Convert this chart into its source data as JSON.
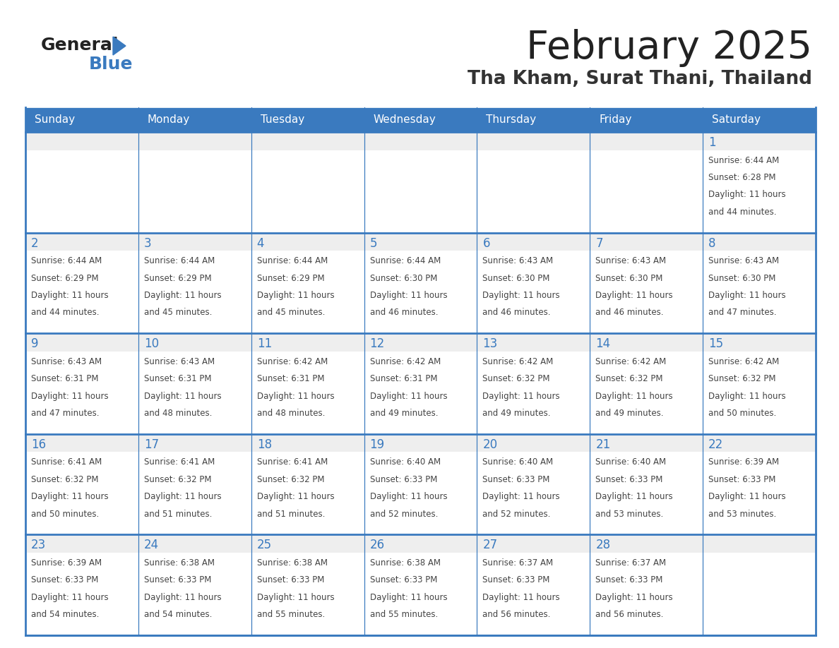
{
  "title": "February 2025",
  "subtitle": "Tha Kham, Surat Thani, Thailand",
  "header_bg": "#3a7abf",
  "header_text": "#ffffff",
  "cell_bg_white": "#ffffff",
  "cell_bg_gray": "#eeeeee",
  "border_color_thick": "#3a7abf",
  "border_color_light": "#cccccc",
  "day_names": [
    "Sunday",
    "Monday",
    "Tuesday",
    "Wednesday",
    "Thursday",
    "Friday",
    "Saturday"
  ],
  "title_color": "#222222",
  "subtitle_color": "#333333",
  "day_num_color": "#3a7abf",
  "cell_text_color": "#444444",
  "logo_general_color": "#222222",
  "logo_blue_color": "#3a7abf",
  "logo_triangle_color": "#3a7abf",
  "calendar": [
    [
      null,
      null,
      null,
      null,
      null,
      null,
      {
        "day": 1,
        "sunrise": "6:44 AM",
        "sunset": "6:28 PM",
        "daylight_l1": "Daylight: 11 hours",
        "daylight_l2": "and 44 minutes."
      }
    ],
    [
      {
        "day": 2,
        "sunrise": "6:44 AM",
        "sunset": "6:29 PM",
        "daylight_l1": "Daylight: 11 hours",
        "daylight_l2": "and 44 minutes."
      },
      {
        "day": 3,
        "sunrise": "6:44 AM",
        "sunset": "6:29 PM",
        "daylight_l1": "Daylight: 11 hours",
        "daylight_l2": "and 45 minutes."
      },
      {
        "day": 4,
        "sunrise": "6:44 AM",
        "sunset": "6:29 PM",
        "daylight_l1": "Daylight: 11 hours",
        "daylight_l2": "and 45 minutes."
      },
      {
        "day": 5,
        "sunrise": "6:44 AM",
        "sunset": "6:30 PM",
        "daylight_l1": "Daylight: 11 hours",
        "daylight_l2": "and 46 minutes."
      },
      {
        "day": 6,
        "sunrise": "6:43 AM",
        "sunset": "6:30 PM",
        "daylight_l1": "Daylight: 11 hours",
        "daylight_l2": "and 46 minutes."
      },
      {
        "day": 7,
        "sunrise": "6:43 AM",
        "sunset": "6:30 PM",
        "daylight_l1": "Daylight: 11 hours",
        "daylight_l2": "and 46 minutes."
      },
      {
        "day": 8,
        "sunrise": "6:43 AM",
        "sunset": "6:30 PM",
        "daylight_l1": "Daylight: 11 hours",
        "daylight_l2": "and 47 minutes."
      }
    ],
    [
      {
        "day": 9,
        "sunrise": "6:43 AM",
        "sunset": "6:31 PM",
        "daylight_l1": "Daylight: 11 hours",
        "daylight_l2": "and 47 minutes."
      },
      {
        "day": 10,
        "sunrise": "6:43 AM",
        "sunset": "6:31 PM",
        "daylight_l1": "Daylight: 11 hours",
        "daylight_l2": "and 48 minutes."
      },
      {
        "day": 11,
        "sunrise": "6:42 AM",
        "sunset": "6:31 PM",
        "daylight_l1": "Daylight: 11 hours",
        "daylight_l2": "and 48 minutes."
      },
      {
        "day": 12,
        "sunrise": "6:42 AM",
        "sunset": "6:31 PM",
        "daylight_l1": "Daylight: 11 hours",
        "daylight_l2": "and 49 minutes."
      },
      {
        "day": 13,
        "sunrise": "6:42 AM",
        "sunset": "6:32 PM",
        "daylight_l1": "Daylight: 11 hours",
        "daylight_l2": "and 49 minutes."
      },
      {
        "day": 14,
        "sunrise": "6:42 AM",
        "sunset": "6:32 PM",
        "daylight_l1": "Daylight: 11 hours",
        "daylight_l2": "and 49 minutes."
      },
      {
        "day": 15,
        "sunrise": "6:42 AM",
        "sunset": "6:32 PM",
        "daylight_l1": "Daylight: 11 hours",
        "daylight_l2": "and 50 minutes."
      }
    ],
    [
      {
        "day": 16,
        "sunrise": "6:41 AM",
        "sunset": "6:32 PM",
        "daylight_l1": "Daylight: 11 hours",
        "daylight_l2": "and 50 minutes."
      },
      {
        "day": 17,
        "sunrise": "6:41 AM",
        "sunset": "6:32 PM",
        "daylight_l1": "Daylight: 11 hours",
        "daylight_l2": "and 51 minutes."
      },
      {
        "day": 18,
        "sunrise": "6:41 AM",
        "sunset": "6:32 PM",
        "daylight_l1": "Daylight: 11 hours",
        "daylight_l2": "and 51 minutes."
      },
      {
        "day": 19,
        "sunrise": "6:40 AM",
        "sunset": "6:33 PM",
        "daylight_l1": "Daylight: 11 hours",
        "daylight_l2": "and 52 minutes."
      },
      {
        "day": 20,
        "sunrise": "6:40 AM",
        "sunset": "6:33 PM",
        "daylight_l1": "Daylight: 11 hours",
        "daylight_l2": "and 52 minutes."
      },
      {
        "day": 21,
        "sunrise": "6:40 AM",
        "sunset": "6:33 PM",
        "daylight_l1": "Daylight: 11 hours",
        "daylight_l2": "and 53 minutes."
      },
      {
        "day": 22,
        "sunrise": "6:39 AM",
        "sunset": "6:33 PM",
        "daylight_l1": "Daylight: 11 hours",
        "daylight_l2": "and 53 minutes."
      }
    ],
    [
      {
        "day": 23,
        "sunrise": "6:39 AM",
        "sunset": "6:33 PM",
        "daylight_l1": "Daylight: 11 hours",
        "daylight_l2": "and 54 minutes."
      },
      {
        "day": 24,
        "sunrise": "6:38 AM",
        "sunset": "6:33 PM",
        "daylight_l1": "Daylight: 11 hours",
        "daylight_l2": "and 54 minutes."
      },
      {
        "day": 25,
        "sunrise": "6:38 AM",
        "sunset": "6:33 PM",
        "daylight_l1": "Daylight: 11 hours",
        "daylight_l2": "and 55 minutes."
      },
      {
        "day": 26,
        "sunrise": "6:38 AM",
        "sunset": "6:33 PM",
        "daylight_l1": "Daylight: 11 hours",
        "daylight_l2": "and 55 minutes."
      },
      {
        "day": 27,
        "sunrise": "6:37 AM",
        "sunset": "6:33 PM",
        "daylight_l1": "Daylight: 11 hours",
        "daylight_l2": "and 56 minutes."
      },
      {
        "day": 28,
        "sunrise": "6:37 AM",
        "sunset": "6:33 PM",
        "daylight_l1": "Daylight: 11 hours",
        "daylight_l2": "and 56 minutes."
      },
      null
    ]
  ]
}
